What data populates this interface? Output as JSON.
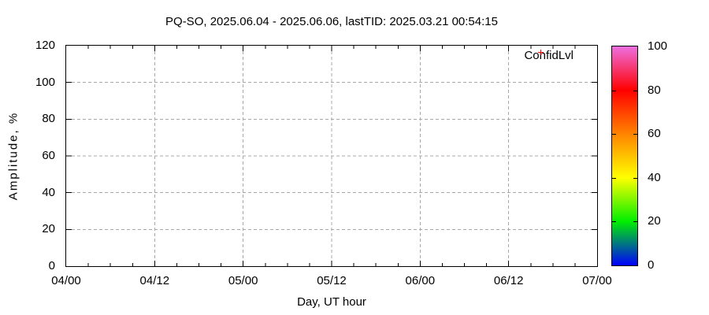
{
  "chart_data": {
    "type": "scatter",
    "title": "PQ-SO, 2025.06.04 - 2025.06.06, lastTID: 2025.03.21 00:54:15",
    "xlabel": "Day, UT hour",
    "ylabel": "Amplitude, %",
    "x_tick_labels": [
      "04/00",
      "04/12",
      "05/00",
      "05/12",
      "06/00",
      "06/12",
      "07/00"
    ],
    "x_minor_ticks_per_major": 4,
    "y_ticks": [
      0,
      20,
      40,
      60,
      80,
      100,
      120
    ],
    "ylim": [
      0,
      120
    ],
    "grid": true,
    "grid_color": "#a8a8a8",
    "axis_color": "#000000",
    "legend": {
      "label": "ConfidLvl",
      "marker": "plus",
      "marker_color": "#ff0000",
      "position": "top-right"
    },
    "series": [
      {
        "name": "ConfidLvl",
        "points": []
      }
    ],
    "colorbar": {
      "min": 0,
      "max": 100,
      "ticks": [
        0,
        20,
        40,
        60,
        80,
        100
      ],
      "gradient": [
        {
          "value": 0,
          "color": "#0000ff"
        },
        {
          "value": 20,
          "color": "#00ee00"
        },
        {
          "value": 40,
          "color": "#ffff00"
        },
        {
          "value": 60,
          "color": "#ff8400"
        },
        {
          "value": 80,
          "color": "#ff0000"
        },
        {
          "value": 100,
          "color": "#ee6fe0"
        }
      ]
    }
  }
}
